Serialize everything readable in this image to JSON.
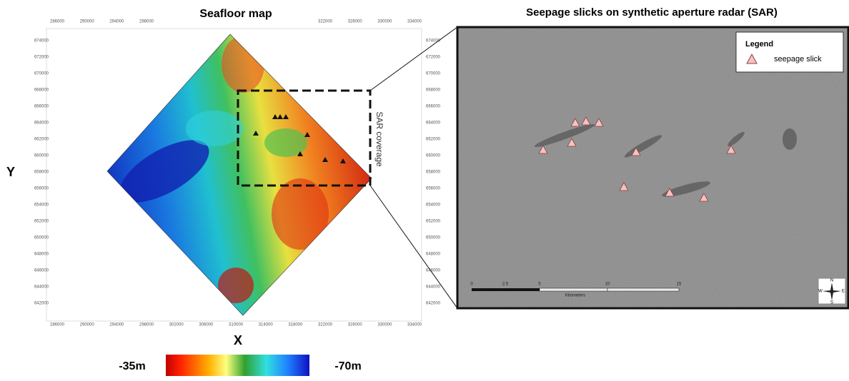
{
  "left_panel": {
    "title": "Seafloor map",
    "x_label": "X",
    "y_label": "Y",
    "x_ticks": [
      286000,
      290000,
      294000,
      298000,
      302000,
      306000,
      310000,
      314000,
      318000,
      322000,
      326000,
      330000,
      334000
    ],
    "y_ticks": [
      674000,
      672000,
      670000,
      668000,
      666000,
      664000,
      662000,
      660000,
      658000,
      656000,
      654000,
      652000,
      650000,
      648000,
      646000,
      644000,
      642000
    ],
    "coverage_label": "SAR coverage",
    "colorbar": {
      "min_label": "-35m",
      "max_label": "-70m"
    }
  },
  "right_panel": {
    "title": "Seepage slicks on synthetic aperture radar (SAR)",
    "legend": {
      "title": "Legend",
      "items": [
        "seepage slick"
      ]
    },
    "scale_bar": {
      "labels": [
        "0",
        "2.5",
        "5",
        "10",
        "15"
      ],
      "unit": "Kilometers"
    },
    "compass": {
      "north": "N",
      "east": "E",
      "south": "S",
      "west": "W"
    }
  }
}
